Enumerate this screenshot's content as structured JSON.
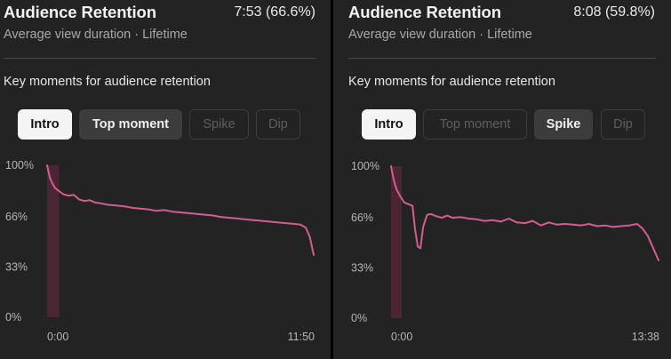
{
  "left": {
    "title": "Audience Retention",
    "duration": "7:53 (66.6%)",
    "subtitle": "Average view duration · Lifetime",
    "section_label": "Key moments for audience retention",
    "chips": [
      "Intro",
      "Top moment",
      "Spike",
      "Dip"
    ],
    "chart_data": {
      "type": "line",
      "y_ticks": [
        "100%",
        "66%",
        "33%",
        "0%"
      ],
      "x_ticks": [
        "0:00",
        "11:50"
      ],
      "ylim": [
        0,
        100
      ],
      "line_color": "#d45d92",
      "highlight_color": "#4a2634",
      "highlighted_moment": "Intro",
      "highlight_span": [
        0,
        0.045
      ],
      "x": [
        0,
        0.01,
        0.02,
        0.03,
        0.045,
        0.06,
        0.08,
        0.1,
        0.12,
        0.14,
        0.16,
        0.18,
        0.2,
        0.23,
        0.26,
        0.29,
        0.32,
        0.35,
        0.38,
        0.41,
        0.44,
        0.47,
        0.5,
        0.53,
        0.56,
        0.59,
        0.62,
        0.65,
        0.68,
        0.71,
        0.74,
        0.77,
        0.8,
        0.83,
        0.86,
        0.89,
        0.92,
        0.95,
        0.97,
        0.985,
        1.0
      ],
      "y": [
        100,
        92,
        88,
        85,
        83,
        81,
        80,
        80.5,
        77.5,
        76.5,
        77,
        75.5,
        75,
        74,
        73.5,
        73,
        72,
        71.5,
        71,
        70,
        70.5,
        69.5,
        69,
        68.5,
        68,
        67.5,
        67,
        66,
        65.5,
        65,
        64.5,
        64,
        63.5,
        63,
        62.5,
        62,
        61.5,
        61,
        59,
        53,
        41
      ]
    }
  },
  "right": {
    "title": "Audience Retention",
    "duration": "8:08 (59.8%)",
    "subtitle": "Average view duration · Lifetime",
    "section_label": "Key moments for audience retention",
    "chips": [
      "Intro",
      "Top moment",
      "Spike",
      "Dip"
    ],
    "chart_data": {
      "type": "line",
      "y_ticks": [
        "100%",
        "66%",
        "33%",
        "0%"
      ],
      "x_ticks": [
        "0:00",
        "13:38"
      ],
      "ylim": [
        0,
        100
      ],
      "line_color": "#d45d92",
      "highlight_color": "#4a2634",
      "highlighted_moment": "Intro",
      "highlight_span": [
        0,
        0.04
      ],
      "x": [
        0,
        0.01,
        0.02,
        0.035,
        0.05,
        0.065,
        0.08,
        0.09,
        0.1,
        0.11,
        0.12,
        0.135,
        0.15,
        0.17,
        0.19,
        0.21,
        0.23,
        0.26,
        0.29,
        0.32,
        0.35,
        0.38,
        0.41,
        0.44,
        0.47,
        0.5,
        0.53,
        0.56,
        0.59,
        0.62,
        0.65,
        0.68,
        0.71,
        0.74,
        0.77,
        0.8,
        0.83,
        0.86,
        0.89,
        0.92,
        0.94,
        0.96,
        0.98,
        1.0
      ],
      "y": [
        100,
        91,
        85,
        80,
        76,
        75,
        74,
        58,
        47,
        46,
        60,
        68,
        68.5,
        67,
        66,
        67.5,
        66,
        66.5,
        65.5,
        65,
        64,
        64.5,
        63.5,
        65.5,
        63,
        62.5,
        64,
        61,
        63,
        61.5,
        62,
        61.5,
        61,
        62,
        60.5,
        61,
        60,
        60.5,
        61,
        62,
        59,
        54,
        46,
        38
      ]
    }
  }
}
